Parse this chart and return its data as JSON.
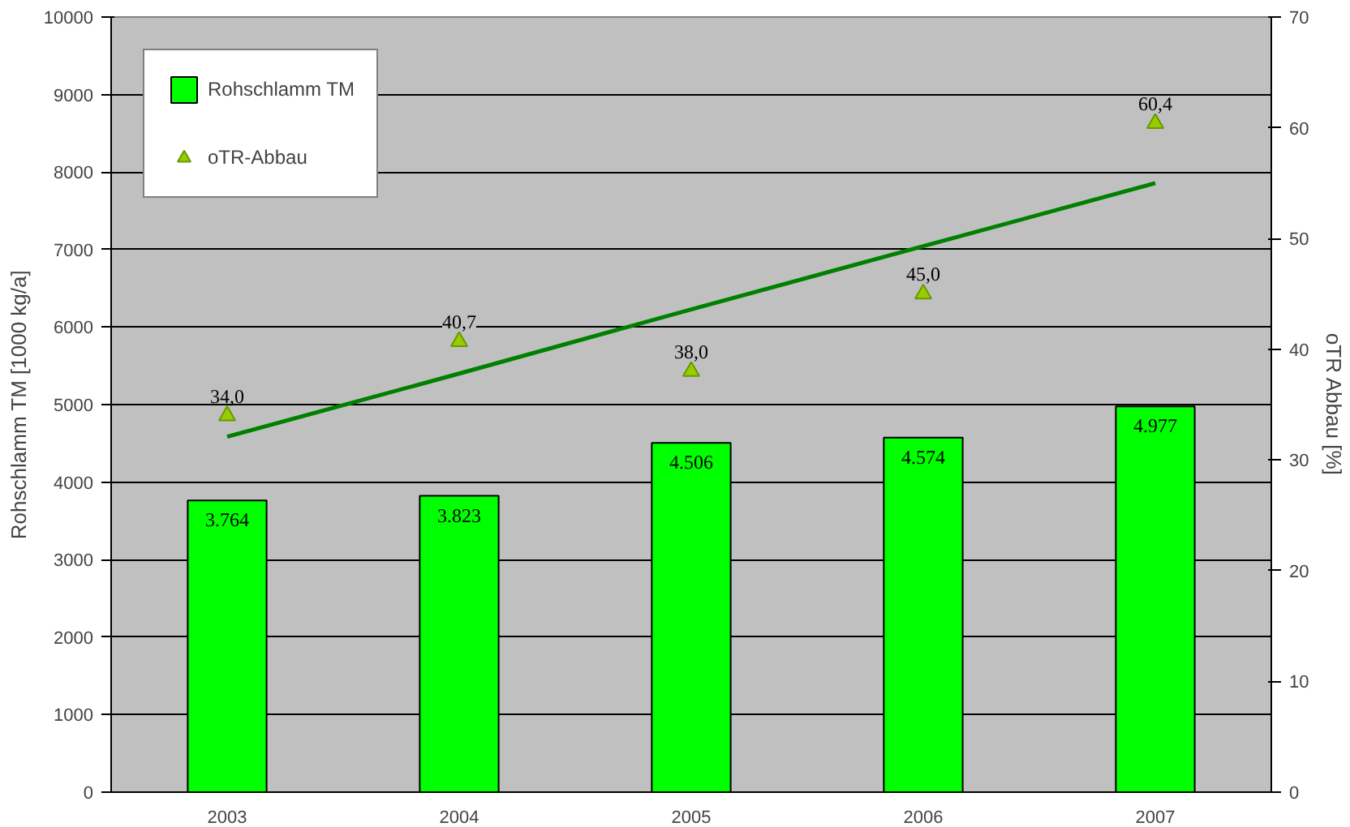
{
  "chart_data": {
    "type": "bar",
    "categories": [
      "2003",
      "2004",
      "2005",
      "2006",
      "2007"
    ],
    "ylabel": "Rohschlamm TM [1000 kg/a]",
    "y2label": "oTR Abbau [%]",
    "ylim": [
      0,
      10000
    ],
    "yticks": [
      0,
      1000,
      2000,
      3000,
      4000,
      5000,
      6000,
      7000,
      8000,
      9000,
      10000
    ],
    "y2lim": [
      0,
      70
    ],
    "y2ticks": [
      0,
      10,
      20,
      30,
      40,
      50,
      60,
      70
    ],
    "grid": "y",
    "legend": "top left",
    "series": [
      {
        "name": "Rohschlamm TM",
        "color": "#00ff00",
        "values": [
          3764,
          3823,
          4506,
          4574,
          4977
        ],
        "value_labels": [
          "3.764",
          "3.823",
          "4.506",
          "4.574",
          "4.977"
        ]
      },
      {
        "name": "oTR-Abbau",
        "type": "scatter",
        "axis": "y2",
        "marker": "triangle",
        "color": "#99cc00",
        "values": [
          34.0,
          40.7,
          38.0,
          45.0,
          60.4
        ],
        "value_labels": [
          "34,0",
          "40,7",
          "38,0",
          "45,0",
          "60,4"
        ]
      },
      {
        "type": "line",
        "axis": "y2",
        "color": "#008000",
        "values": [
          32.1,
          37.8,
          43.6,
          49.3,
          55.0
        ]
      }
    ]
  }
}
